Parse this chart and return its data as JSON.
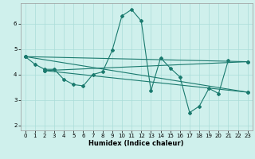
{
  "xlabel": "Humidex (Indice chaleur)",
  "bg_color": "#cff0ec",
  "line_color": "#1a7a6e",
  "grid_color": "#aaddd8",
  "xlim": [
    -0.5,
    23.5
  ],
  "ylim": [
    1.8,
    6.8
  ],
  "yticks": [
    2,
    3,
    4,
    5,
    6
  ],
  "xticks": [
    0,
    1,
    2,
    3,
    4,
    5,
    6,
    7,
    8,
    9,
    10,
    11,
    12,
    13,
    14,
    15,
    16,
    17,
    18,
    19,
    20,
    21,
    22,
    23
  ],
  "series": [
    {
      "comment": "main zigzag curve: 0->1->2->3, then up to 9->10->11, down from 12->13, up 14->15, down 16->17->18, up 19->20->21",
      "x": [
        0,
        1,
        2,
        3,
        4,
        5,
        6,
        7,
        8,
        9,
        10,
        11,
        12,
        13,
        14,
        15,
        16,
        17,
        18,
        19,
        20,
        21
      ],
      "y": [
        4.7,
        4.4,
        4.2,
        4.2,
        3.8,
        3.6,
        3.55,
        4.0,
        4.1,
        4.95,
        6.3,
        6.55,
        6.1,
        3.35,
        4.65,
        4.25,
        3.9,
        2.5,
        2.75,
        3.45,
        3.25,
        4.55
      ]
    },
    {
      "x": [
        2,
        23
      ],
      "y": [
        4.15,
        4.5
      ]
    },
    {
      "x": [
        2,
        23
      ],
      "y": [
        4.15,
        3.3
      ]
    },
    {
      "x": [
        0,
        23
      ],
      "y": [
        4.7,
        4.5
      ]
    },
    {
      "x": [
        0,
        23
      ],
      "y": [
        4.7,
        3.3
      ]
    }
  ],
  "markers_x": [
    0,
    1,
    2,
    3,
    4,
    5,
    6,
    7,
    8,
    9,
    10,
    11,
    12,
    13,
    14,
    15,
    16,
    17,
    18,
    19,
    20,
    21
  ],
  "markers_y": [
    4.7,
    4.4,
    4.2,
    4.2,
    3.8,
    3.6,
    3.55,
    4.0,
    4.1,
    4.95,
    6.3,
    6.55,
    6.1,
    3.35,
    4.65,
    4.25,
    3.9,
    2.5,
    2.75,
    3.45,
    3.25,
    4.55
  ]
}
